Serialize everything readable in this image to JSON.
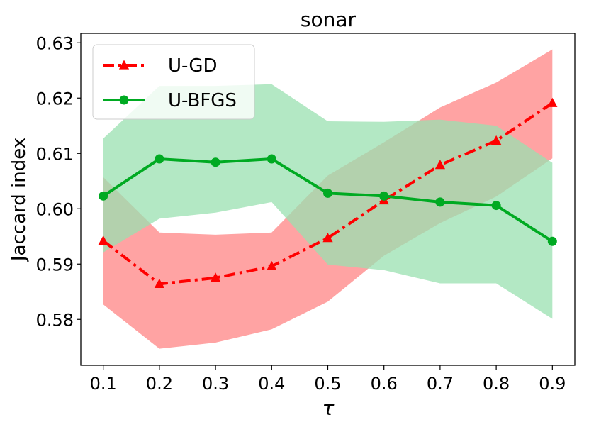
{
  "chart_data": {
    "type": "line",
    "title": "sonar",
    "xlabel": "τ",
    "ylabel": "Jaccard index",
    "x": [
      0.1,
      0.2,
      0.3,
      0.4,
      0.5,
      0.6,
      0.7,
      0.8,
      0.9
    ],
    "xticks": [
      "0.1",
      "0.2",
      "0.3",
      "0.4",
      "0.5",
      "0.6",
      "0.7",
      "0.8",
      "0.9"
    ],
    "yticks": [
      "0.58",
      "0.59",
      "0.60",
      "0.61",
      "0.62",
      "0.63"
    ],
    "ylim": [
      0.5717,
      0.6317
    ],
    "xlim": [
      0.06,
      0.94
    ],
    "grid": false,
    "legend_position": "top-left",
    "series": [
      {
        "name": "U-GD",
        "color": "#ff0000",
        "band_color": "#ff9999",
        "marker": "triangle",
        "linestyle": "dashdot",
        "values": [
          0.5942,
          0.5864,
          0.5875,
          0.5896,
          0.5947,
          0.6015,
          0.6079,
          0.6123,
          0.6191
        ],
        "lower": [
          0.5827,
          0.5747,
          0.5758,
          0.5782,
          0.5832,
          0.5915,
          0.5974,
          0.6022,
          0.6091
        ],
        "upper": [
          0.6057,
          0.5957,
          0.5953,
          0.5957,
          0.606,
          0.612,
          0.6183,
          0.6228,
          0.6288
        ]
      },
      {
        "name": "U-BFGS",
        "color": "#00aa22",
        "band_color": "#99e0b0",
        "marker": "circle",
        "linestyle": "solid",
        "values": [
          0.6023,
          0.609,
          0.6084,
          0.609,
          0.6028,
          0.6023,
          0.6012,
          0.6006,
          0.5941
        ],
        "lower": [
          0.5921,
          0.5982,
          0.5993,
          0.6012,
          0.5899,
          0.5889,
          0.5865,
          0.5865,
          0.5801
        ],
        "upper": [
          0.6127,
          0.6222,
          0.6222,
          0.6225,
          0.6158,
          0.6157,
          0.6161,
          0.615,
          0.6083
        ]
      }
    ]
  }
}
